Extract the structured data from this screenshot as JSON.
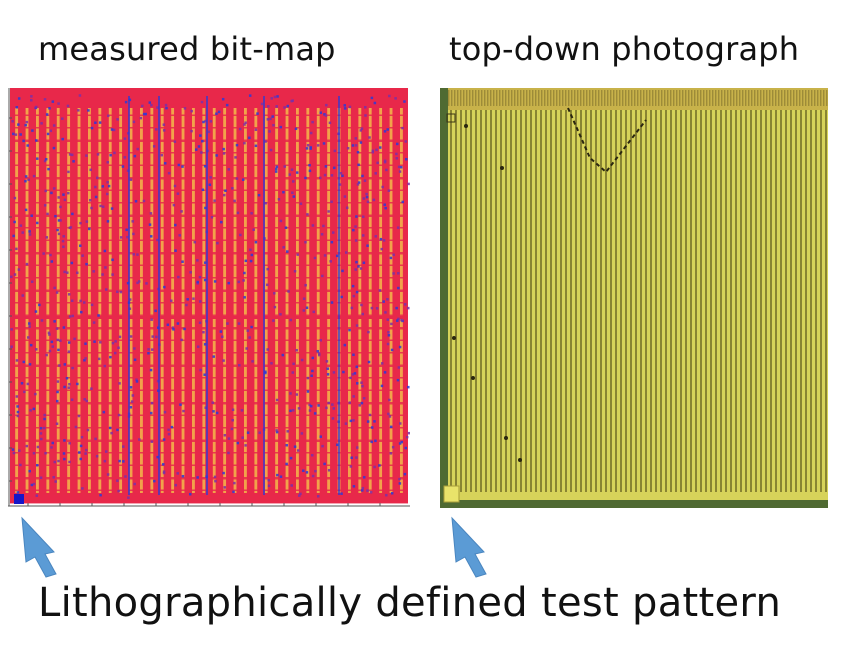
{
  "titles": {
    "left": "measured bit-map",
    "right": "top-down photograph"
  },
  "caption": "Lithographically defined test pattern",
  "colors": {
    "bitmap_red": "#e8284a",
    "bitmap_orange": "#f2a24a",
    "bitmap_blue": "#2a3ad8",
    "photo_yellow": "#d7d35a",
    "photo_dark": "#6f6a25",
    "photo_border": "#4f6a32",
    "arrow_fill": "#5b9bd5"
  },
  "icons": {
    "arrow_left": "pointer-arrow-icon",
    "arrow_right": "pointer-arrow-icon"
  }
}
